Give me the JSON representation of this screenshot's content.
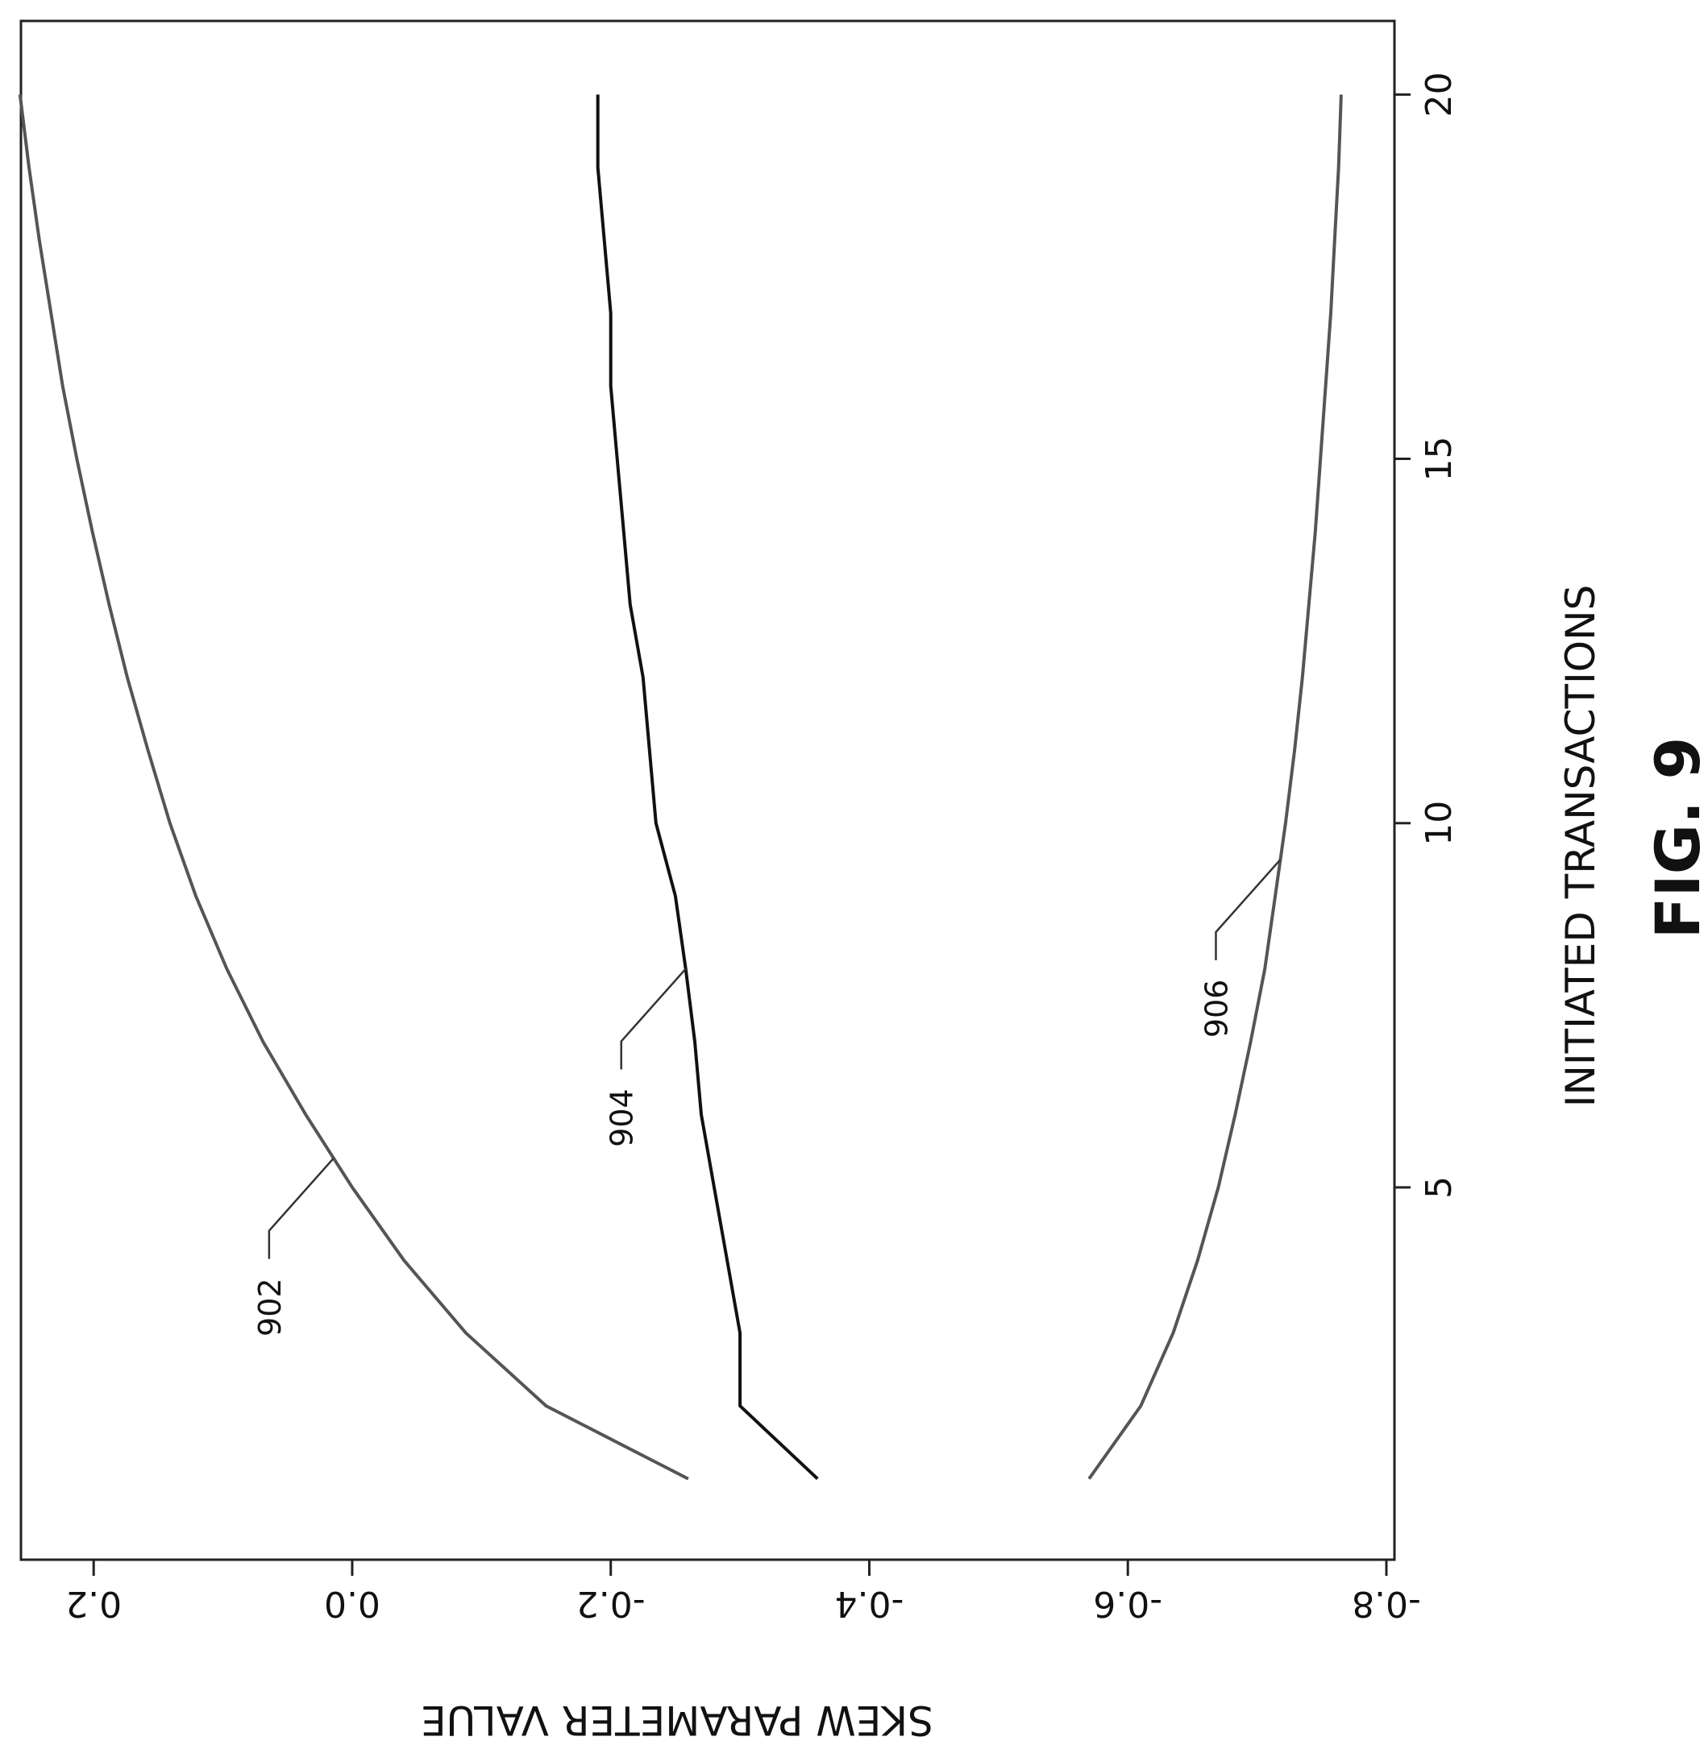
{
  "chart_data": {
    "type": "line",
    "title": "",
    "xlabel": "INITIATED TRANSACTIONS",
    "ylabel": "SKEW PARAMETER VALUE",
    "figure_label": "FIG. 9",
    "xlim": [
      0,
      20.9
    ],
    "ylim": [
      -0.8,
      0.25
    ],
    "x_ticks": [
      "5",
      "10",
      "15",
      "20"
    ],
    "y_ticks": [
      "-0.8",
      "-0.6",
      "-0.4",
      "-0.2",
      "0.0",
      "0.2"
    ],
    "grid": false,
    "legend": "none",
    "orientation": "rotated 90 degrees clockwise",
    "series": [
      {
        "callout": "902",
        "x": [
          1,
          2,
          3,
          4,
          5,
          6,
          7,
          8,
          9,
          10,
          11,
          12,
          13,
          14,
          15,
          16,
          17,
          18,
          19,
          20
        ],
        "y": [
          -0.26,
          -0.15,
          -0.088,
          -0.04,
          0.0,
          0.036,
          0.069,
          0.097,
          0.121,
          0.141,
          0.158,
          0.174,
          0.188,
          0.201,
          0.213,
          0.224,
          0.233,
          0.242,
          0.25,
          0.257
        ],
        "callout_at": 5.4
      },
      {
        "callout": "904",
        "x": [
          1,
          2,
          3,
          4,
          5,
          6,
          7,
          8,
          9,
          10,
          11,
          12,
          13,
          14,
          15,
          16,
          17,
          18,
          19,
          20
        ],
        "y": [
          -0.36,
          -0.3,
          -0.3,
          -0.29,
          -0.28,
          -0.27,
          -0.265,
          -0.258,
          -0.25,
          -0.235,
          -0.23,
          -0.225,
          -0.215,
          -0.21,
          -0.205,
          -0.2,
          -0.2,
          -0.195,
          -0.19,
          -0.19
        ],
        "callout_at": 8
      },
      {
        "callout": "906",
        "x": [
          1,
          2,
          3,
          4,
          5,
          6,
          7,
          8,
          9,
          10,
          11,
          12,
          13,
          14,
          15,
          16,
          17,
          18,
          19,
          20
        ],
        "y": [
          -0.57,
          -0.61,
          -0.635,
          -0.654,
          -0.67,
          -0.683,
          -0.695,
          -0.706,
          -0.714,
          -0.722,
          -0.729,
          -0.735,
          -0.74,
          -0.745,
          -0.749,
          -0.753,
          -0.757,
          -0.76,
          -0.763,
          -0.765
        ],
        "callout_at": 9.5
      }
    ]
  }
}
